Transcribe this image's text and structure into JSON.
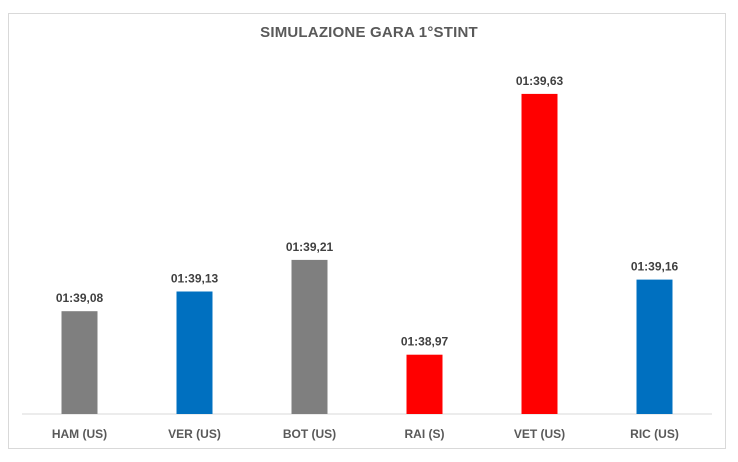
{
  "chart_data": {
    "type": "bar",
    "title": "SIMULAZIONE GARA 1°STINT",
    "xlabel": "",
    "ylabel": "",
    "categories": [
      "HAM (US)",
      "VER (US)",
      "BOT (US)",
      "RAI (S)",
      "VET (US)",
      "RIC (US)"
    ],
    "values": [
      99.08,
      99.13,
      99.21,
      98.97,
      99.63,
      99.16
    ],
    "data_labels": [
      "01:39,08",
      "01:39,13",
      "01:39,21",
      "01:38,97",
      "01:39,63",
      "01:39,16"
    ],
    "colors": [
      "#7f7f7f",
      "#0070c0",
      "#7f7f7f",
      "#ff0000",
      "#ff0000",
      "#0070c0"
    ],
    "ylim": [
      98.82,
      99.66
    ],
    "grid": false,
    "legend": "none"
  }
}
